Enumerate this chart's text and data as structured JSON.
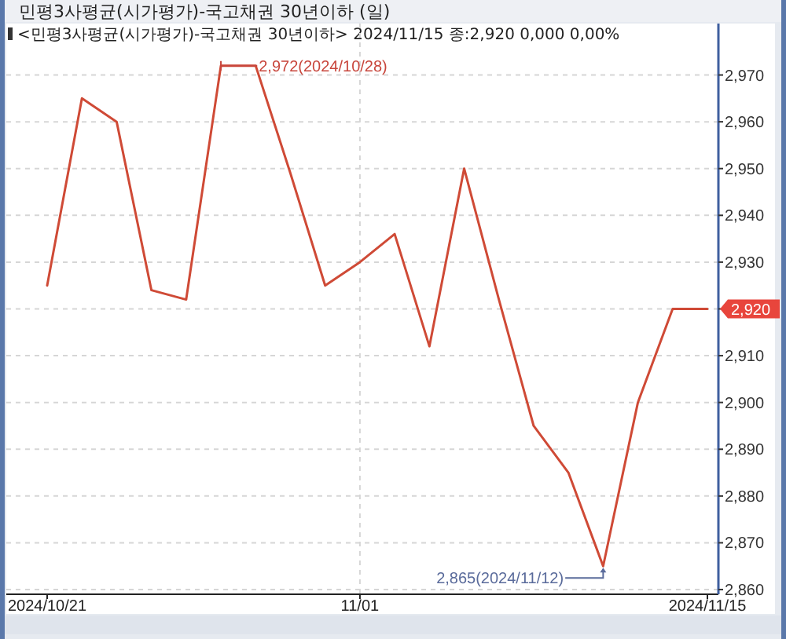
{
  "chart_data": {
    "type": "line",
    "title": "민평3사평균(시가평가)-국고채권 30년이하 (일)",
    "subtitle": "<민평3사평균(시가평가)-국고채권 30년이하> 2024/11/15 종:2,920 0,000 0,00%",
    "categories": [
      "2024/10/21",
      null,
      null,
      null,
      null,
      null,
      null,
      null,
      null,
      "11/01",
      null,
      null,
      null,
      null,
      null,
      null,
      null,
      null,
      null,
      "2024/11/15"
    ],
    "series": [
      {
        "color": "#cf4a36",
        "values": [
          2925,
          2965,
          2960,
          2924,
          2922,
          2972,
          2972,
          2949,
          2925,
          2930,
          2936,
          2912,
          2950,
          2922,
          2895,
          2885,
          2865,
          2900,
          2920,
          2920
        ],
        "value_labels": [
          null,
          null,
          null,
          null,
          null,
          "2,972(2024/10/28)",
          null,
          null,
          null,
          null,
          null,
          null,
          null,
          null,
          null,
          null,
          "2,865(2024/11/12)",
          null,
          null,
          "2,920"
        ]
      }
    ],
    "ylim": [
      2859,
      2981
    ],
    "yticks": [
      {
        "value": 2860,
        "label": "2,860"
      },
      {
        "value": 2870,
        "label": "2,870"
      },
      {
        "value": 2880,
        "label": "2,880"
      },
      {
        "value": 2890,
        "label": "2,890"
      },
      {
        "value": 2900,
        "label": "2,900"
      },
      {
        "value": 2910,
        "label": "2,910"
      },
      {
        "value": 2920,
        "label": null
      },
      {
        "value": 2930,
        "label": "2,930"
      },
      {
        "value": 2940,
        "label": "2,940"
      },
      {
        "value": 2950,
        "label": "2,950"
      },
      {
        "value": 2960,
        "label": "2,960"
      },
      {
        "value": 2970,
        "label": "2,970"
      }
    ],
    "grid": true
  }
}
